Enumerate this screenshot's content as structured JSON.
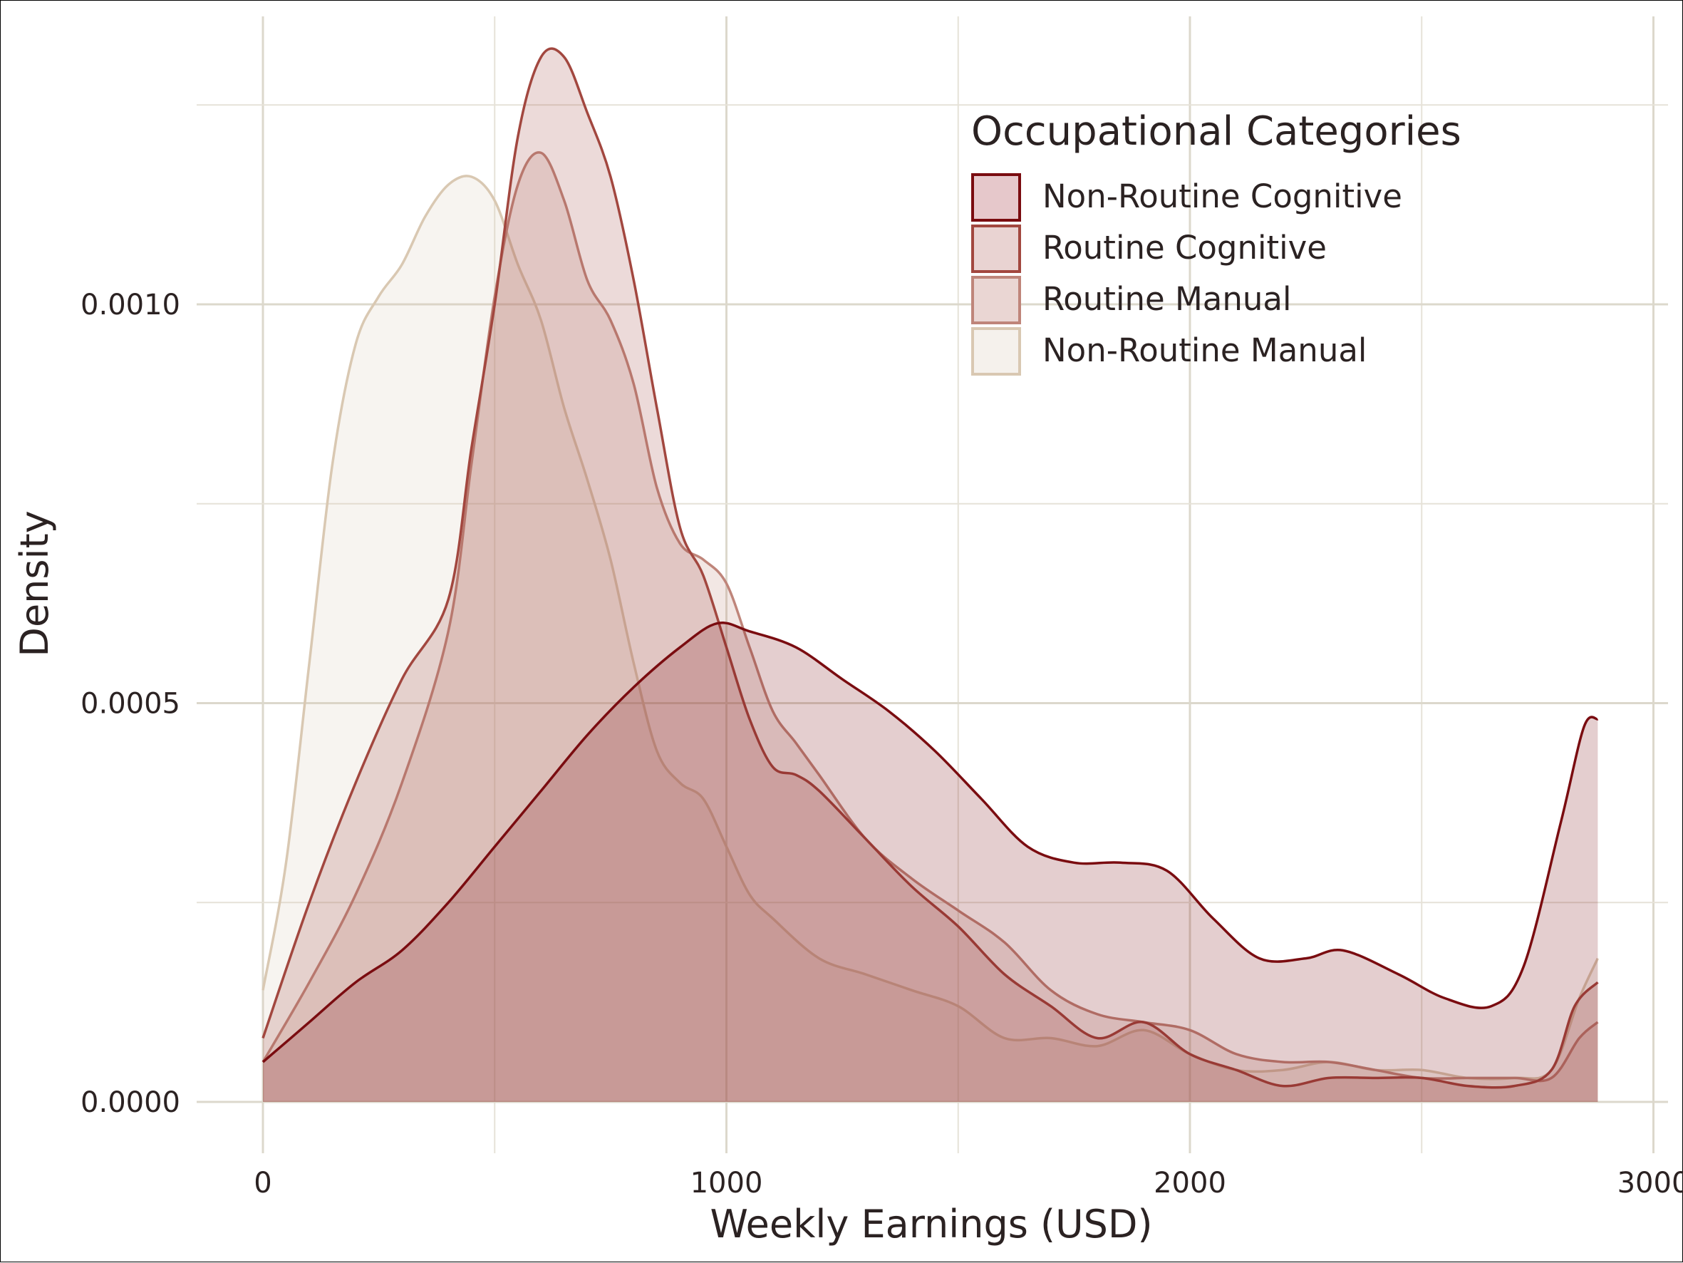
{
  "chart_data": {
    "type": "area",
    "xlabel": "Weekly Earnings (USD)",
    "ylabel": "Density",
    "xlim": [
      -145,
      3000
    ],
    "ylim": [
      -7e-05,
      0.00137
    ],
    "x_ticks": [
      0,
      1000,
      2000,
      3000
    ],
    "x_tick_labels": [
      "0",
      "1000",
      "2000",
      "3000"
    ],
    "y_ticks": [
      0,
      0.0005,
      0.001
    ],
    "y_tick_labels": [
      "0.0000",
      "0.0005",
      "0.0010"
    ],
    "grid": true,
    "legend": {
      "title": "Occupational Categories",
      "placement": "top-right"
    },
    "series": [
      {
        "name": "Non-Routine Cognitive",
        "color": "#7a0c10",
        "fill": "#e6c8cb",
        "points": [
          [
            0,
            5e-05
          ],
          [
            100,
            0.0001
          ],
          [
            200,
            0.00015
          ],
          [
            300,
            0.00019
          ],
          [
            400,
            0.00025
          ],
          [
            500,
            0.00032
          ],
          [
            600,
            0.00039
          ],
          [
            700,
            0.00046
          ],
          [
            800,
            0.00052
          ],
          [
            900,
            0.00057
          ],
          [
            980,
            0.0006
          ],
          [
            1050,
            0.00059
          ],
          [
            1150,
            0.00057
          ],
          [
            1250,
            0.00053
          ],
          [
            1350,
            0.00049
          ],
          [
            1450,
            0.00044
          ],
          [
            1550,
            0.00038
          ],
          [
            1650,
            0.00032
          ],
          [
            1750,
            0.0003
          ],
          [
            1850,
            0.0003
          ],
          [
            1950,
            0.00029
          ],
          [
            2050,
            0.00023
          ],
          [
            2150,
            0.00018
          ],
          [
            2250,
            0.00018
          ],
          [
            2330,
            0.00019
          ],
          [
            2450,
            0.00016
          ],
          [
            2550,
            0.00013
          ],
          [
            2650,
            0.00012
          ],
          [
            2720,
            0.00017
          ],
          [
            2800,
            0.00035
          ],
          [
            2850,
            0.00047
          ],
          [
            2880,
            0.00048
          ]
        ]
      },
      {
        "name": "Routine Cognitive",
        "color": "#a2473f",
        "fill": "#e9d3d2",
        "points": [
          [
            0,
            8e-05
          ],
          [
            100,
            0.00025
          ],
          [
            200,
            0.0004
          ],
          [
            300,
            0.00053
          ],
          [
            400,
            0.00063
          ],
          [
            450,
            0.00082
          ],
          [
            500,
            0.001
          ],
          [
            550,
            0.00121
          ],
          [
            600,
            0.00131
          ],
          [
            650,
            0.00131
          ],
          [
            700,
            0.00124
          ],
          [
            750,
            0.00116
          ],
          [
            800,
            0.00103
          ],
          [
            850,
            0.00087
          ],
          [
            900,
            0.00072
          ],
          [
            950,
            0.00066
          ],
          [
            1000,
            0.00057
          ],
          [
            1050,
            0.00048
          ],
          [
            1100,
            0.00042
          ],
          [
            1150,
            0.00041
          ],
          [
            1200,
            0.00039
          ],
          [
            1300,
            0.00033
          ],
          [
            1400,
            0.00027
          ],
          [
            1500,
            0.00022
          ],
          [
            1600,
            0.00016
          ],
          [
            1700,
            0.00012
          ],
          [
            1800,
            8e-05
          ],
          [
            1900,
            0.0001
          ],
          [
            2000,
            6e-05
          ],
          [
            2100,
            4e-05
          ],
          [
            2200,
            2e-05
          ],
          [
            2300,
            3e-05
          ],
          [
            2400,
            3e-05
          ],
          [
            2500,
            3e-05
          ],
          [
            2600,
            2e-05
          ],
          [
            2700,
            2e-05
          ],
          [
            2780,
            4e-05
          ],
          [
            2830,
            0.00012
          ],
          [
            2880,
            0.00015
          ]
        ]
      },
      {
        "name": "Routine Manual",
        "color": "#bf857a",
        "fill": "#ead6d3",
        "points": [
          [
            0,
            5e-05
          ],
          [
            100,
            0.00015
          ],
          [
            200,
            0.00026
          ],
          [
            300,
            0.0004
          ],
          [
            400,
            0.00059
          ],
          [
            450,
            0.0008
          ],
          [
            500,
            0.00101
          ],
          [
            550,
            0.00115
          ],
          [
            600,
            0.00119
          ],
          [
            650,
            0.00113
          ],
          [
            700,
            0.00103
          ],
          [
            750,
            0.00098
          ],
          [
            800,
            0.0009
          ],
          [
            850,
            0.00077
          ],
          [
            900,
            0.0007
          ],
          [
            950,
            0.00068
          ],
          [
            1000,
            0.00065
          ],
          [
            1050,
            0.00057
          ],
          [
            1100,
            0.00049
          ],
          [
            1150,
            0.00045
          ],
          [
            1200,
            0.00041
          ],
          [
            1300,
            0.00033
          ],
          [
            1400,
            0.00028
          ],
          [
            1500,
            0.00024
          ],
          [
            1600,
            0.0002
          ],
          [
            1700,
            0.00014
          ],
          [
            1800,
            0.00011
          ],
          [
            1900,
            0.0001
          ],
          [
            2000,
            9e-05
          ],
          [
            2100,
            6e-05
          ],
          [
            2200,
            5e-05
          ],
          [
            2300,
            5e-05
          ],
          [
            2400,
            4e-05
          ],
          [
            2500,
            3e-05
          ],
          [
            2600,
            3e-05
          ],
          [
            2700,
            3e-05
          ],
          [
            2780,
            3e-05
          ],
          [
            2840,
            8e-05
          ],
          [
            2880,
            0.0001
          ]
        ]
      },
      {
        "name": "Non-Routine Manual",
        "color": "#d9c8b2",
        "fill": "#f5f1ec",
        "points": [
          [
            0,
            0.00014
          ],
          [
            50,
            0.0003
          ],
          [
            100,
            0.00055
          ],
          [
            150,
            0.0008
          ],
          [
            200,
            0.00095
          ],
          [
            250,
            0.00101
          ],
          [
            300,
            0.00105
          ],
          [
            350,
            0.00111
          ],
          [
            400,
            0.00115
          ],
          [
            450,
            0.00116
          ],
          [
            500,
            0.00113
          ],
          [
            550,
            0.00105
          ],
          [
            600,
            0.00098
          ],
          [
            650,
            0.00087
          ],
          [
            700,
            0.00078
          ],
          [
            750,
            0.00068
          ],
          [
            800,
            0.00055
          ],
          [
            850,
            0.00044
          ],
          [
            900,
            0.0004
          ],
          [
            950,
            0.00038
          ],
          [
            1000,
            0.00032
          ],
          [
            1050,
            0.00026
          ],
          [
            1100,
            0.00023
          ],
          [
            1200,
            0.00018
          ],
          [
            1300,
            0.00016
          ],
          [
            1400,
            0.00014
          ],
          [
            1500,
            0.00012
          ],
          [
            1600,
            8e-05
          ],
          [
            1700,
            8e-05
          ],
          [
            1800,
            7e-05
          ],
          [
            1900,
            9e-05
          ],
          [
            2000,
            6e-05
          ],
          [
            2100,
            4e-05
          ],
          [
            2200,
            4e-05
          ],
          [
            2300,
            5e-05
          ],
          [
            2400,
            4e-05
          ],
          [
            2500,
            4e-05
          ],
          [
            2600,
            3e-05
          ],
          [
            2700,
            3e-05
          ],
          [
            2780,
            4e-05
          ],
          [
            2840,
            0.00013
          ],
          [
            2880,
            0.00018
          ]
        ]
      }
    ]
  }
}
